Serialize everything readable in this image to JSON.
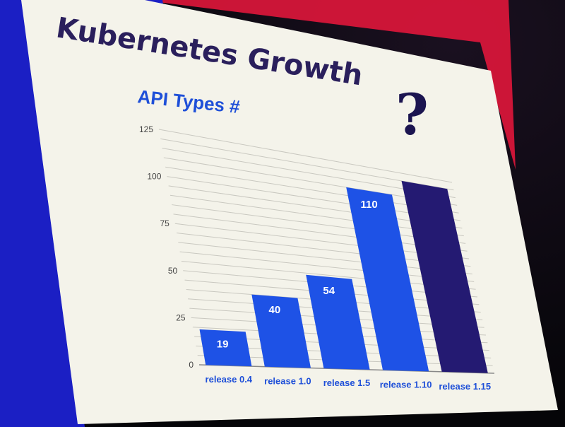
{
  "colors": {
    "slide_bg": "#f4f3ea",
    "bar_main": "#1e52e6",
    "bar_highlight": "#241a72",
    "title": "#2a1f5c",
    "accent_red": "#e0163b",
    "frame_blue": "#1b1fc4"
  },
  "chart_data": {
    "type": "bar",
    "title": "Kubernetes Growth",
    "subtitle": "API Types #",
    "xlabel": "",
    "ylabel": "",
    "ylim": [
      0,
      125
    ],
    "yticks": [
      0,
      25,
      50,
      75,
      100,
      125
    ],
    "grid": true,
    "categories": [
      "release 0.4",
      "release 1.0",
      "release 1.5",
      "release 1.10",
      "release 1.15"
    ],
    "values": [
      19,
      40,
      54,
      110,
      120
    ],
    "data_labels": [
      "19",
      "40",
      "54",
      "110",
      ""
    ],
    "highlight_last": true,
    "annotation": "?"
  }
}
